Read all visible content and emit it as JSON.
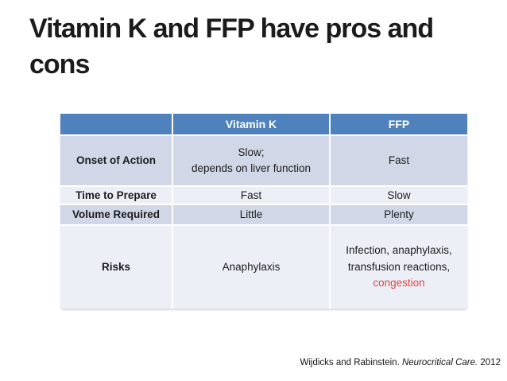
{
  "slide": {
    "title_lines": [
      "Vitamin K and FFP have pros and",
      "cons"
    ]
  },
  "colors": {
    "header_bg": "#4f81bd",
    "header_text": "#ffffff",
    "band_dark": "#d1d7e6",
    "band_light": "#eceff6",
    "body_text": "#1c1c1c",
    "title_text": "#1b1b1b",
    "highlight_red": "#de4643"
  },
  "table": {
    "columns": [
      {
        "header": ""
      },
      {
        "header": "Vitamin K"
      },
      {
        "header": "FFP"
      }
    ],
    "rows": [
      {
        "label": "Onset of Action",
        "vitamin_k": "Slow;\ndepends on liver function",
        "ffp": "Fast"
      },
      {
        "label": "Time to Prepare",
        "vitamin_k": "Fast",
        "ffp": "Slow"
      },
      {
        "label": "Volume Required",
        "vitamin_k": "Little",
        "ffp": "Plenty"
      },
      {
        "label": "Risks",
        "vitamin_k": "Anaphylaxis",
        "ffp_lines": [
          "Infection, anaphylaxis,",
          "transfusion reactions,"
        ],
        "ffp_highlight": "congestion"
      }
    ]
  },
  "citation": {
    "authors": "Wijdicks and Rabinstein.",
    "journal": "Neurocritical Care.",
    "year": "2012"
  }
}
